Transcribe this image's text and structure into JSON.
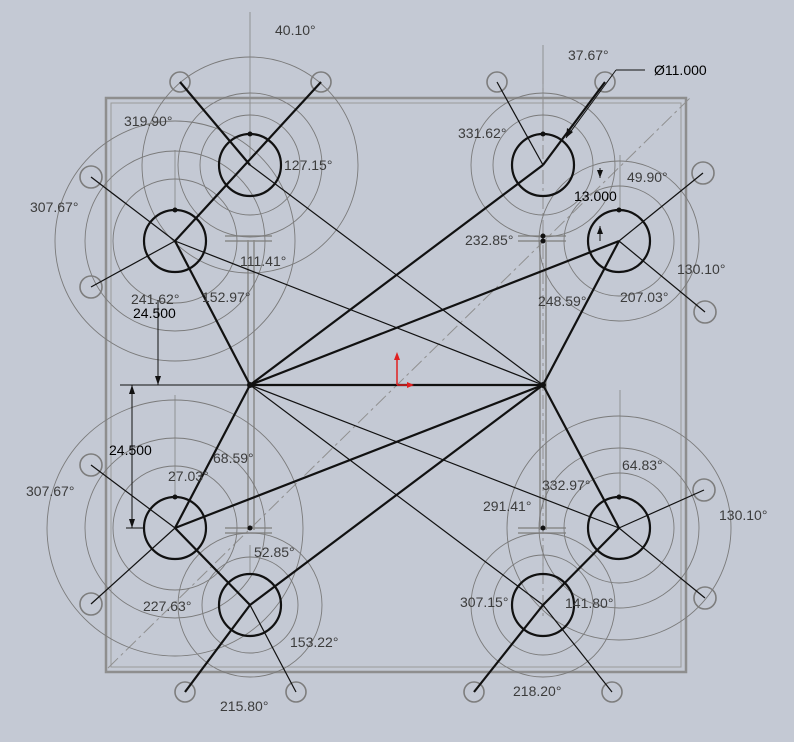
{
  "dimensions": {
    "diameter": "Ø11.000",
    "d_13": "13.000",
    "d_24_upper": "24.500",
    "d_24_lower": "24.500"
  },
  "angles": {
    "a_40_10": "40.10°",
    "a_37_67": "37.67°",
    "a_319_90": "319.90°",
    "a_331_62": "331.62°",
    "a_127_15": "127.15°",
    "a_49_90": "49.90°",
    "a_307_67_top": "307.67°",
    "a_232_85": "232.85°",
    "a_111_41": "111.41°",
    "a_130_10_top": "130.10°",
    "a_241_62": "241.62°",
    "a_152_97": "152.97°",
    "a_248_59": "248.59°",
    "a_207_03": "207.03°",
    "a_68_59": "68.59°",
    "a_64_83": "64.83°",
    "a_27_03": "27.03°",
    "a_332_97": "332.97°",
    "a_307_67_bottom": "307.67°",
    "a_291_41": "291.41°",
    "a_130_10_bottom": "130.10°",
    "a_52_85": "52.85°",
    "a_227_63": "227.63°",
    "a_307_15": "307.15°",
    "a_141_80": "141.80°",
    "a_153_22": "153.22°",
    "a_215_80": "215.80°",
    "a_218_20": "218.20°"
  },
  "colors": {
    "background": "#c4c9d4",
    "geometry": "#111111",
    "construction": "#8e8e8e",
    "origin": "#e02020"
  }
}
